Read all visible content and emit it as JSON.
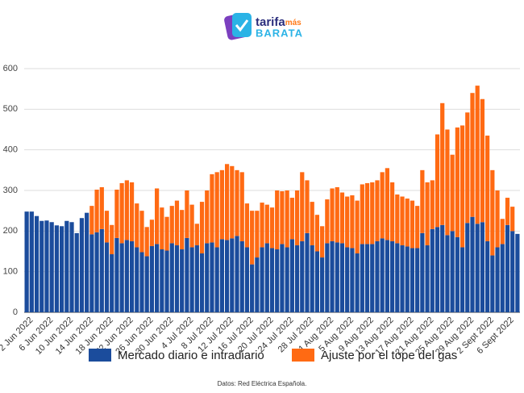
{
  "header": {
    "brand": "tarifa",
    "brand_accent": "más",
    "brand_sub": "BARATA"
  },
  "chart_data": {
    "type": "bar",
    "stacked": true,
    "grid": true,
    "categories": [
      null,
      "2 Jun 2022",
      null,
      null,
      null,
      "6 Jun 2022",
      null,
      null,
      null,
      "10 Jun 2022",
      null,
      null,
      null,
      "14 Jun 2022",
      null,
      null,
      null,
      "18 Jun 2022",
      null,
      null,
      null,
      "22 Jun 2022",
      null,
      null,
      null,
      "26 Jun 2022",
      null,
      null,
      null,
      "30 Jun 2022",
      null,
      null,
      null,
      "4 Jul 2022",
      null,
      null,
      null,
      "8 Jul 2022",
      null,
      null,
      null,
      "12 Jul 2022",
      null,
      null,
      null,
      "16 Jul 2022",
      null,
      null,
      null,
      "20 Jul 2022",
      null,
      null,
      null,
      "24 Jul 2022",
      null,
      null,
      null,
      "28 Jul 2022",
      null,
      null,
      null,
      "1 Aug 2022",
      null,
      null,
      null,
      "5 Aug 2022",
      null,
      null,
      null,
      "9 Aug 2022",
      null,
      null,
      null,
      "13 Aug 2022",
      null,
      null,
      null,
      "17 Aug 2022",
      null,
      null,
      null,
      "21 Aug 2022",
      null,
      null,
      null,
      "25 Aug 2022",
      null,
      null,
      null,
      "29 Aug 2022",
      null,
      null,
      null,
      "2 Sept 2022",
      null,
      null,
      null,
      "6 Sept 2022",
      null
    ],
    "series": [
      {
        "name": "Mercado diario e intradiario",
        "color": "#1b4c9c",
        "values": [
          248,
          248,
          237,
          225,
          226,
          222,
          214,
          212,
          225,
          222,
          195,
          232,
          245,
          192,
          197,
          205,
          172,
          143,
          183,
          170,
          178,
          175,
          160,
          148,
          138,
          163,
          168,
          155,
          152,
          170,
          165,
          155,
          183,
          160,
          165,
          145,
          170,
          172,
          160,
          180,
          178,
          182,
          188,
          175,
          160,
          118,
          135,
          160,
          170,
          158,
          155,
          168,
          160,
          180,
          165,
          175,
          195,
          165,
          150,
          135,
          170,
          175,
          172,
          170,
          160,
          158,
          145,
          168,
          168,
          168,
          175,
          182,
          178,
          175,
          170,
          165,
          162,
          158,
          158,
          195,
          165,
          205,
          210,
          215,
          190,
          200,
          185,
          160,
          220,
          235,
          218,
          222,
          175,
          140,
          160,
          168,
          215,
          200,
          193
        ]
      },
      {
        "name": "Ajuste por el tope del gas",
        "color": "#ff6a13",
        "values": [
          null,
          null,
          null,
          null,
          null,
          null,
          null,
          null,
          null,
          null,
          null,
          null,
          null,
          70,
          105,
          103,
          78,
          72,
          119,
          148,
          147,
          145,
          108,
          102,
          72,
          65,
          137,
          103,
          83,
          92,
          110,
          97,
          117,
          105,
          53,
          127,
          130,
          168,
          185,
          170,
          187,
          178,
          162,
          170,
          108,
          132,
          115,
          110,
          95,
          100,
          145,
          130,
          140,
          102,
          135,
          170,
          130,
          107,
          90,
          77,
          108,
          130,
          136,
          125,
          125,
          130,
          130,
          147,
          150,
          152,
          150,
          163,
          177,
          145,
          120,
          120,
          118,
          117,
          104,
          155,
          155,
          120,
          228,
          300,
          260,
          188,
          270,
          300,
          272,
          305,
          340,
          303,
          260,
          210,
          140,
          62,
          67,
          60,
          null
        ]
      }
    ],
    "ylim": [
      0,
      600
    ],
    "yticks": [
      0,
      100,
      200,
      300,
      400,
      500,
      600
    ],
    "source": "Datos: Red Eléctrica Española."
  }
}
